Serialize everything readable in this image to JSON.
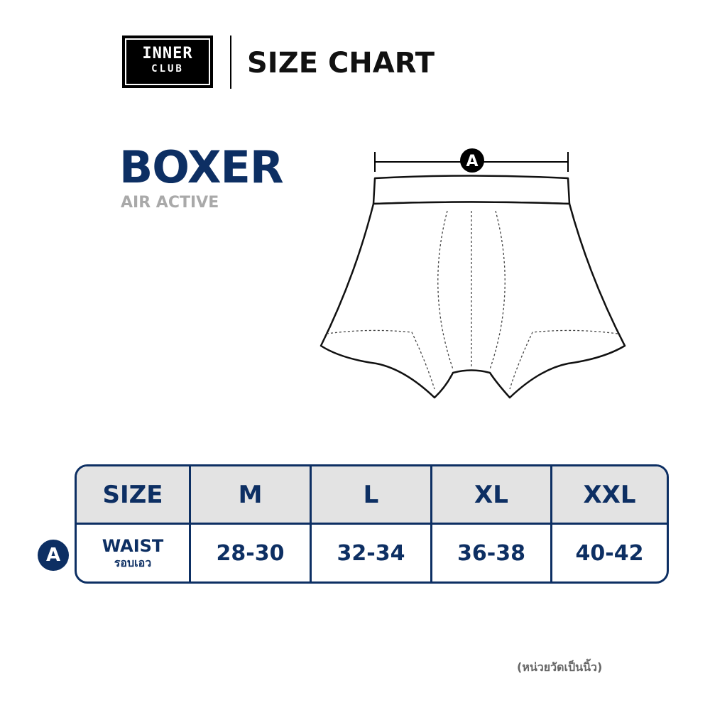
{
  "brand": {
    "line1": "INNER",
    "line2": "CLUB"
  },
  "header": {
    "title": "SIZE CHART"
  },
  "product": {
    "name": "BOXER",
    "subtitle": "AIR ACTIVE"
  },
  "diagram": {
    "measure_label": "A"
  },
  "table": {
    "header_label": "SIZE",
    "sizes": [
      "M",
      "L",
      "XL",
      "XXL"
    ],
    "row": {
      "marker": "A",
      "label": "WAIST",
      "label_thai": "รอบเอว",
      "values": [
        "28-30",
        "32-34",
        "36-38",
        "40-42"
      ]
    }
  },
  "note": "(หน่วยวัดเป็นนิ้ว)",
  "colors": {
    "navy": "#0d2f63",
    "header_bg": "#e3e3e3",
    "subtitle": "#a9a9a9"
  }
}
